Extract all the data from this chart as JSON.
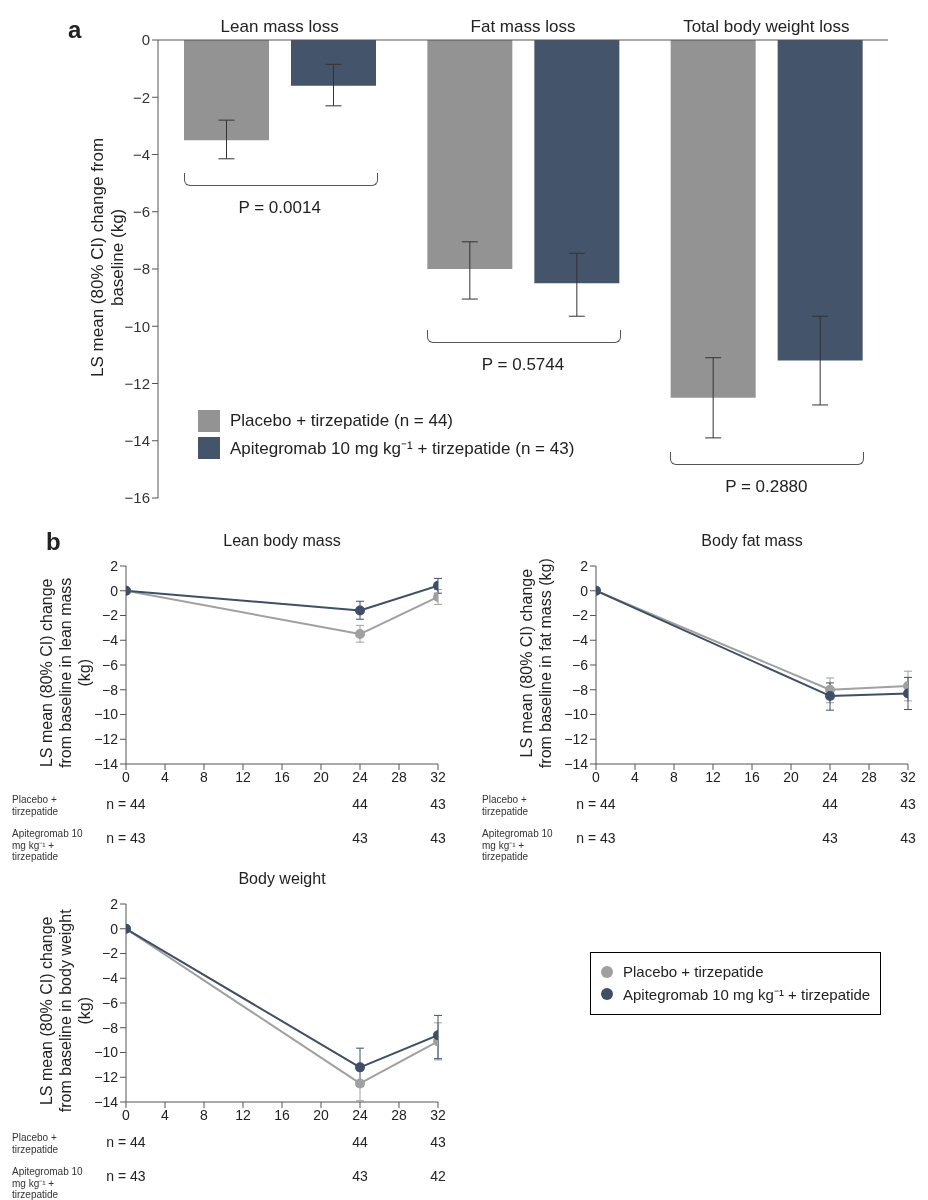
{
  "chart_data": [
    {
      "type": "bar",
      "categories": [
        "Lean mass loss",
        "Fat mass loss",
        "Total body weight loss"
      ],
      "ylabel": "LS mean (80% CI) change from baseline (kg)",
      "ylim": [
        -16,
        0
      ],
      "yticks": [
        -16,
        -14,
        -12,
        -10,
        -8,
        -6,
        -4,
        -2,
        0
      ],
      "legend": "bottom left",
      "series": [
        {
          "name": "Placebo + tirzepatide (n = 44)",
          "color": "#939393",
          "values": [
            -3.5,
            -8.0,
            -12.5
          ],
          "errors": [
            [
              -4.15,
              -2.8
            ],
            [
              -9.05,
              -7.05
            ],
            [
              -13.9,
              -11.1
            ]
          ]
        },
        {
          "name": "Apitegromab 10 mg kg⁻¹ + tirzepatide (n = 43)",
          "color": "#44546a",
          "values": [
            -1.6,
            -8.5,
            -11.2
          ],
          "errors": [
            [
              -2.3,
              -0.85
            ],
            [
              -9.65,
              -7.45
            ],
            [
              -12.75,
              -9.65
            ]
          ]
        }
      ],
      "annotations": [
        "P = 0.0014",
        "P = 0.5744",
        "P = 0.2880",
        "a"
      ]
    },
    {
      "type": "line",
      "title": "Lean body mass",
      "ylabel": "LS mean (80% CI) change from baseline in lean mass (kg)",
      "x": [
        0,
        24,
        32
      ],
      "xlim": [
        0,
        32
      ],
      "xticks": [
        0,
        4,
        8,
        12,
        16,
        20,
        24,
        28,
        32
      ],
      "ylim": [
        -14,
        2
      ],
      "yticks": [
        -14,
        -12,
        -10,
        -8,
        -6,
        -4,
        -2,
        0,
        2
      ],
      "marker": "circle",
      "series": [
        {
          "color": "#a0a0a0",
          "values": [
            0,
            -3.5,
            -0.5
          ],
          "errors": [
            null,
            [
              -4.15,
              -2.8
            ],
            [
              -1.1,
              0.1
            ]
          ]
        },
        {
          "color": "#3f4f66",
          "values": [
            0,
            -1.6,
            0.4
          ],
          "errors": [
            null,
            [
              -2.3,
              -0.85
            ],
            [
              -0.2,
              1.0
            ]
          ]
        }
      ],
      "annotations": [
        "Placebo + tirzepatide",
        "n = 44",
        "44",
        "43",
        "Apitegromab 10 mg kg⁻¹ + tirzepatide",
        "n = 43",
        "43",
        "43",
        "b"
      ]
    },
    {
      "type": "line",
      "title": "Body fat mass",
      "ylabel": "LS mean (80% CI) change from baseline in fat mass (kg)",
      "x": [
        0,
        24,
        32
      ],
      "xlim": [
        0,
        32
      ],
      "xticks": [
        0,
        4,
        8,
        12,
        16,
        20,
        24,
        28,
        32
      ],
      "ylim": [
        -14,
        2
      ],
      "yticks": [
        -14,
        -12,
        -10,
        -8,
        -6,
        -4,
        -2,
        0,
        2
      ],
      "marker": "circle",
      "series": [
        {
          "color": "#a0a0a0",
          "values": [
            0,
            -8.0,
            -7.7
          ],
          "errors": [
            null,
            [
              -9.05,
              -7.05
            ],
            [
              -8.9,
              -6.5
            ]
          ]
        },
        {
          "color": "#3f4f66",
          "values": [
            0,
            -8.5,
            -8.3
          ],
          "errors": [
            null,
            [
              -9.65,
              -7.45
            ],
            [
              -9.6,
              -7.0
            ]
          ]
        }
      ],
      "annotations": [
        "Placebo + tirzepatide",
        "n = 44",
        "44",
        "43",
        "Apitegromab 10 mg kg⁻¹ + tirzepatide",
        "n = 43",
        "43",
        "43"
      ]
    },
    {
      "type": "line",
      "title": "Body weight",
      "ylabel": "LS mean (80% CI) change from baseline in body weight (kg)",
      "x": [
        0,
        24,
        32
      ],
      "xlim": [
        0,
        32
      ],
      "xticks": [
        0,
        4,
        8,
        12,
        16,
        20,
        24,
        28,
        32
      ],
      "ylim": [
        -14,
        2
      ],
      "yticks": [
        -14,
        -12,
        -10,
        -8,
        -6,
        -4,
        -2,
        0,
        2
      ],
      "marker": "circle",
      "legend": "right",
      "series": [
        {
          "name": "Placebo + tirzepatide",
          "color": "#a0a0a0",
          "values": [
            0,
            -12.5,
            -9.1
          ],
          "errors": [
            null,
            [
              -13.9,
              -12.5
            ],
            [
              -10.6,
              -7.6
            ]
          ]
        },
        {
          "name": "Apitegromab 10 mg kg⁻¹ + tirzepatide",
          "color": "#3f4f66",
          "values": [
            0,
            -11.2,
            -8.6
          ],
          "errors": [
            null,
            [
              -12.75,
              -9.65
            ],
            [
              -10.5,
              -7.0
            ]
          ]
        }
      ],
      "annotations": [
        "Placebo + tirzepatide",
        "n = 44",
        "44",
        "43",
        "Apitegromab 10 mg kg⁻¹ + tirzepatide",
        "n = 43",
        "43",
        "42"
      ]
    }
  ]
}
